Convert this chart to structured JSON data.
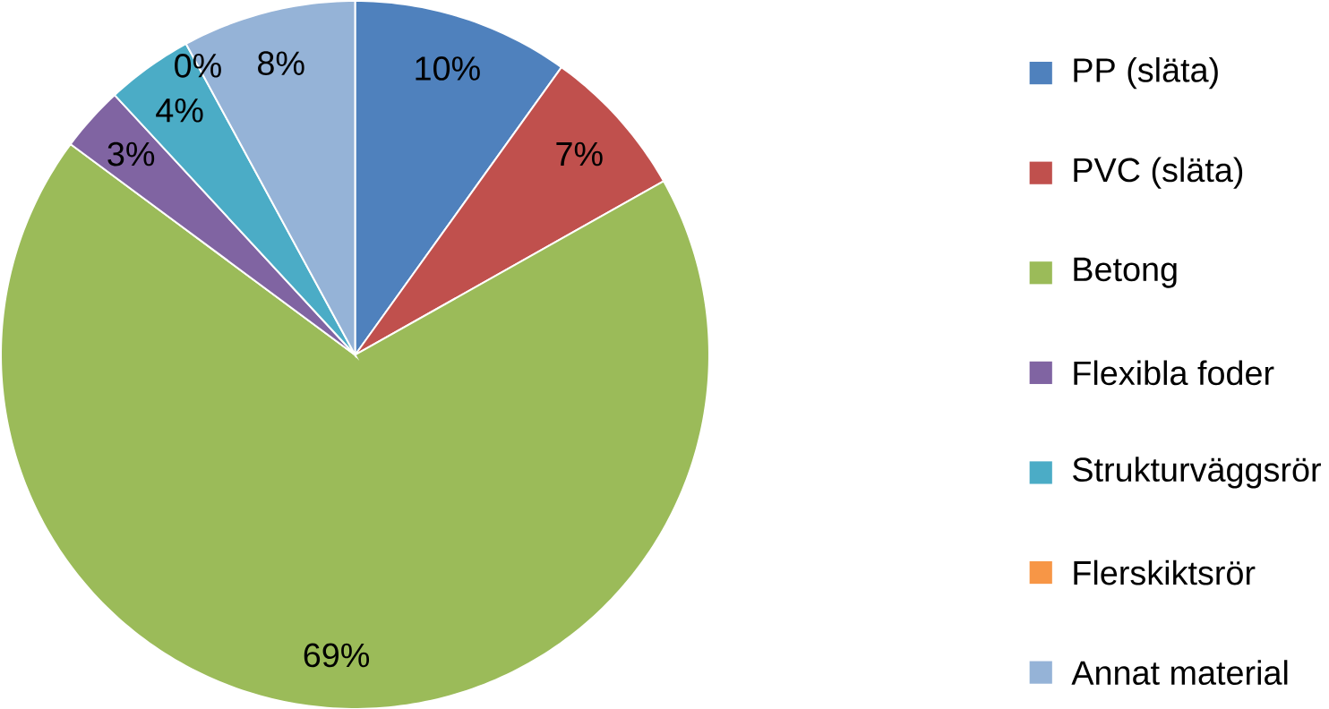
{
  "chart_data": {
    "type": "pie",
    "categories": [
      "PP (släta)",
      "PVC (släta)",
      "Betong",
      "Flexibla foder",
      "Strukturväggsrör",
      "Flerskiktsrör",
      "Annat material"
    ],
    "values": [
      10,
      7,
      69,
      3,
      4,
      0,
      8
    ],
    "value_labels": [
      "10%",
      "7%",
      "69%",
      "3%",
      "4%",
      "0%",
      "8%"
    ],
    "colors": [
      "#4f81bd",
      "#c0504d",
      "#9bbb59",
      "#8064a2",
      "#4bacc6",
      "#f79646",
      "#95b3d7"
    ],
    "legend": "right"
  }
}
